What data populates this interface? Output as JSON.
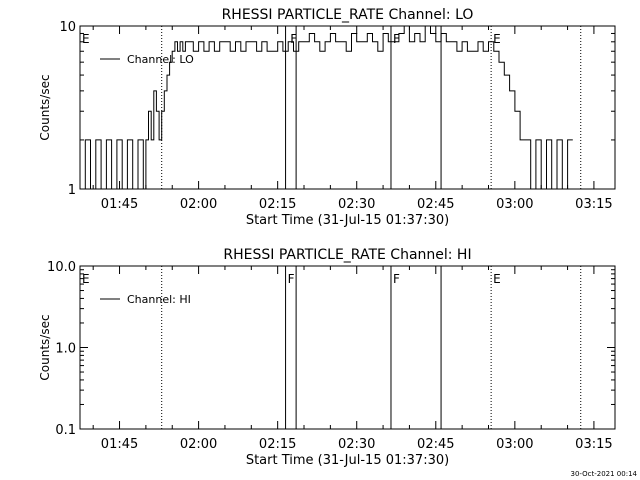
{
  "footer_date": "30-Oct-2021 00:14",
  "chart_data": [
    {
      "type": "line",
      "title": "RHESSI PARTICLE_RATE Channel: LO",
      "xlabel": "Start Time (31-Jul-15 01:37:30)",
      "ylabel": "Counts/sec",
      "yscale": "log",
      "ylim": [
        1,
        10
      ],
      "xlim": [
        "01:37:30",
        "03:19:00"
      ],
      "x_ticks": [
        "01:45",
        "02:00",
        "02:15",
        "02:30",
        "02:45",
        "03:00",
        "03:15"
      ],
      "y_ticks": [
        "1",
        "10"
      ],
      "legend": {
        "label": "Channel: LO",
        "position": "top-left"
      },
      "series": [
        {
          "name": "Channel: LO",
          "x": [
            "01:37:30",
            "01:38:30",
            "01:39:30",
            "01:40:30",
            "01:41:30",
            "01:42:30",
            "01:43:30",
            "01:44:30",
            "01:45:30",
            "01:46:30",
            "01:47:30",
            "01:48:30",
            "01:49:30",
            "01:50:00",
            "01:50:30",
            "01:51:00",
            "01:51:30",
            "01:52:00",
            "01:52:30",
            "01:53:00",
            "01:53:30",
            "01:54:00",
            "01:54:30",
            "01:55:00",
            "01:55:30",
            "01:56:00",
            "01:56:30",
            "01:57:00",
            "01:57:30",
            "01:58:00",
            "01:59:00",
            "02:00:00",
            "02:01:00",
            "02:02:00",
            "02:03:00",
            "02:04:00",
            "02:05:00",
            "02:06:00",
            "02:07:00",
            "02:08:00",
            "02:09:00",
            "02:10:00",
            "02:11:00",
            "02:12:00",
            "02:13:00",
            "02:14:00",
            "02:15:00",
            "02:16:00",
            "02:17:00",
            "02:18:00",
            "02:19:00",
            "02:20:00",
            "02:21:00",
            "02:22:00",
            "02:23:00",
            "02:24:00",
            "02:25:00",
            "02:26:00",
            "02:27:00",
            "02:28:00",
            "02:29:00",
            "02:30:00",
            "02:31:00",
            "02:32:00",
            "02:33:00",
            "02:34:00",
            "02:35:00",
            "02:36:00",
            "02:37:00",
            "02:38:00",
            "02:39:00",
            "02:40:00",
            "02:41:00",
            "02:42:00",
            "02:43:00",
            "02:44:00",
            "02:45:00",
            "02:46:00",
            "02:47:00",
            "02:48:00",
            "02:49:00",
            "02:50:00",
            "02:51:00",
            "02:52:00",
            "02:53:00",
            "02:54:00",
            "02:55:00",
            "02:56:00",
            "02:57:00",
            "02:58:00",
            "02:59:00",
            "03:00:00",
            "03:01:00",
            "03:02:00",
            "03:03:00",
            "03:04:00",
            "03:05:00",
            "03:06:00",
            "03:07:00",
            "03:08:00",
            "03:09:00",
            "03:10:00"
          ],
          "values": [
            1,
            2,
            1,
            2,
            1,
            2,
            1,
            2,
            1,
            2,
            1,
            2,
            1,
            2,
            3,
            2,
            4,
            3,
            2,
            3,
            4,
            5,
            6,
            7,
            8,
            7,
            8,
            7,
            8,
            8,
            7,
            8,
            7,
            8,
            7,
            8,
            8,
            7,
            8,
            7,
            8,
            8,
            7,
            8,
            7,
            7,
            8,
            7,
            8,
            7,
            8,
            8,
            9,
            8,
            7,
            8,
            9,
            8,
            8,
            7,
            9,
            8,
            8,
            9,
            8,
            7,
            9,
            8,
            8,
            9,
            10,
            8,
            9,
            8,
            10,
            9,
            8,
            9,
            8,
            8,
            7,
            8,
            7,
            7,
            8,
            7,
            8,
            7,
            6,
            5,
            4,
            3,
            2,
            2,
            1,
            2,
            1,
            2,
            1,
            2,
            1,
            2
          ]
        }
      ],
      "annotations": [
        {
          "label": "E",
          "x": "01:37:30"
        },
        {
          "label": "F",
          "x": "02:17:00"
        },
        {
          "label": "F",
          "x": "02:36:30"
        },
        {
          "label": "E",
          "x": "02:55:30"
        }
      ],
      "event_lines": [
        "02:16:30",
        "02:18:30",
        "02:36:30",
        "02:46:00"
      ],
      "dotted_lines": [
        "01:53:00",
        "02:55:30",
        "03:12:30"
      ]
    },
    {
      "type": "line",
      "title": "RHESSI PARTICLE_RATE Channel: HI",
      "xlabel": "Start Time (31-Jul-15 01:37:30)",
      "ylabel": "Counts/sec",
      "yscale": "log",
      "ylim": [
        0.1,
        10
      ],
      "xlim": [
        "01:37:30",
        "03:19:00"
      ],
      "x_ticks": [
        "01:45",
        "02:00",
        "02:15",
        "02:30",
        "02:45",
        "03:00",
        "03:15"
      ],
      "y_ticks": [
        "0.1",
        "1.0",
        "10.0"
      ],
      "legend": {
        "label": "Channel: HI",
        "position": "top-left"
      },
      "series": [
        {
          "name": "Channel: HI",
          "x": [],
          "values": []
        }
      ],
      "annotations": [
        {
          "label": "E",
          "x": "01:37:30"
        },
        {
          "label": "F",
          "x": "02:16:30"
        },
        {
          "label": "F",
          "x": "02:36:30"
        },
        {
          "label": "E",
          "x": "02:55:30"
        }
      ],
      "event_lines": [
        "02:16:30",
        "02:18:30",
        "02:36:30",
        "02:46:00"
      ],
      "dotted_lines": [
        "01:53:00",
        "02:55:30",
        "03:12:30"
      ]
    }
  ]
}
